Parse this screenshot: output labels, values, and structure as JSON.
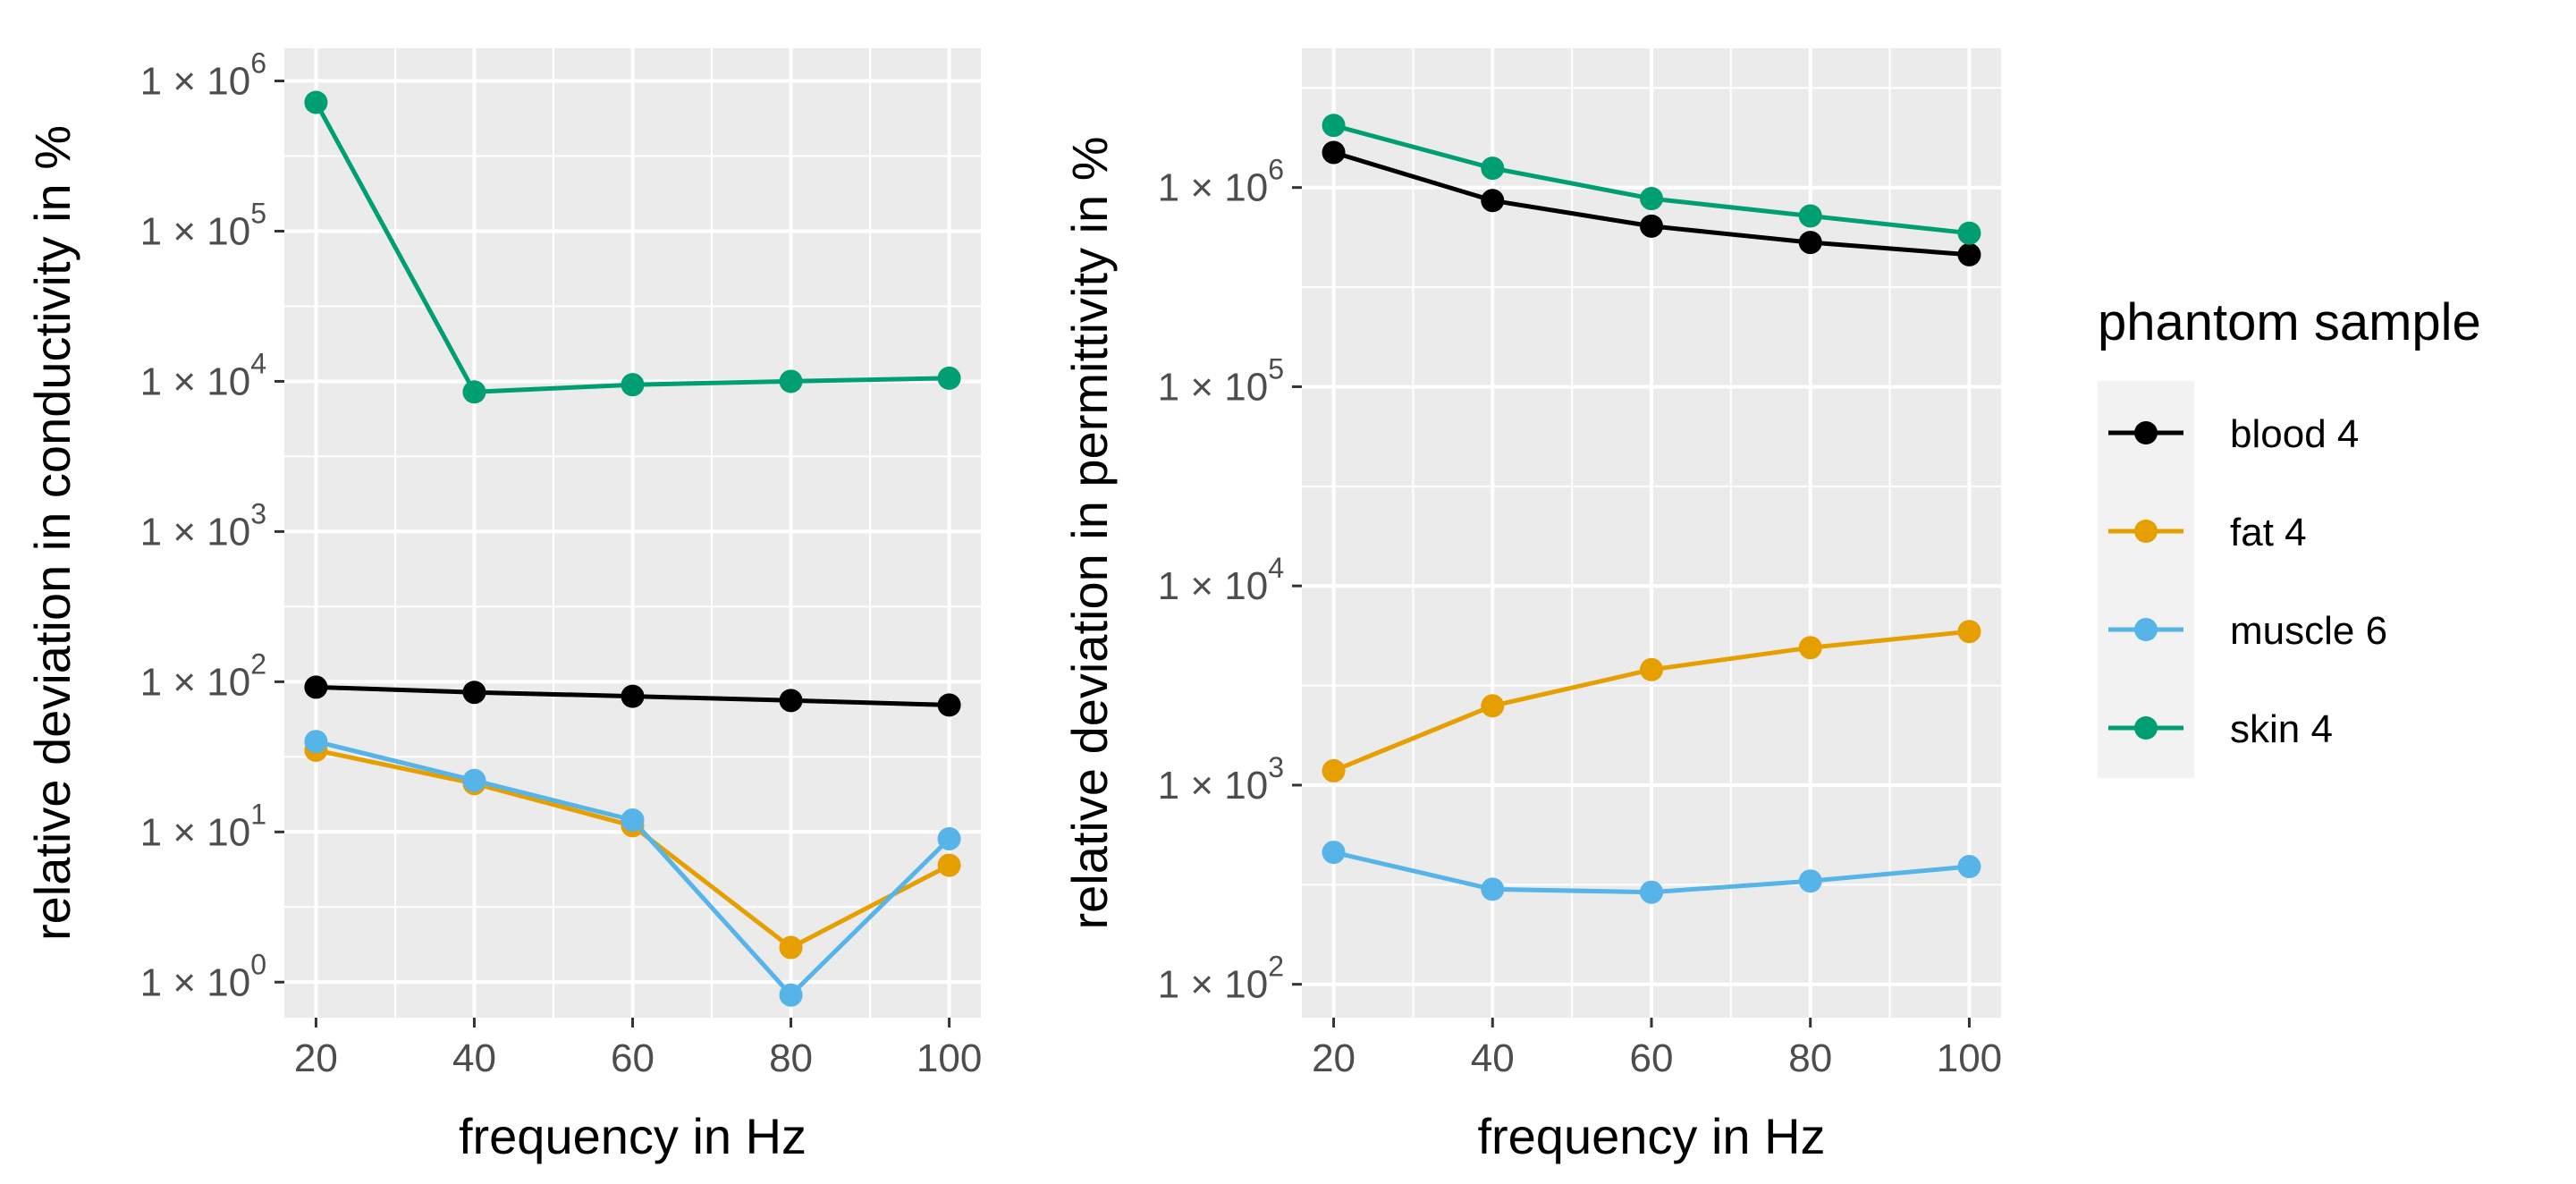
{
  "chart_data": [
    {
      "type": "line",
      "xlabel": "frequency in Hz",
      "ylabel": "relative deviation in conductivity in %",
      "y_scale": "log10",
      "x": [
        20,
        40,
        60,
        80,
        100
      ],
      "x_ticks": [
        "20",
        "40",
        "60",
        "80",
        "100"
      ],
      "y_ticks": [
        {
          "value": 1,
          "mantissa": "1 × 10",
          "exponent": "0"
        },
        {
          "value": 10,
          "mantissa": "1 × 10",
          "exponent": "1"
        },
        {
          "value": 100,
          "mantissa": "1 × 10",
          "exponent": "2"
        },
        {
          "value": 1000,
          "mantissa": "1 × 10",
          "exponent": "3"
        },
        {
          "value": 10000,
          "mantissa": "1 × 10",
          "exponent": "4"
        },
        {
          "value": 100000,
          "mantissa": "1 × 10",
          "exponent": "5"
        },
        {
          "value": 1000000,
          "mantissa": "1 × 10",
          "exponent": "6"
        }
      ],
      "xlim": [
        16,
        104
      ],
      "ylim": [
        0.58,
        1650000
      ],
      "grid": true,
      "series": [
        {
          "name": "blood 4",
          "color": "#000000",
          "values": [
            92,
            85,
            80,
            75,
            70
          ]
        },
        {
          "name": "fat 4",
          "color": "#E69F00",
          "values": [
            35,
            21,
            11,
            1.7,
            6
          ]
        },
        {
          "name": "muscle 6",
          "color": "#56B4E9",
          "values": [
            40,
            22,
            12,
            0.82,
            9
          ]
        },
        {
          "name": "skin 4",
          "color": "#009E73",
          "values": [
            720000,
            8500,
            9500,
            10000,
            10500
          ]
        }
      ]
    },
    {
      "type": "line",
      "xlabel": "frequency in Hz",
      "ylabel": "relative deviation in permittivity in %",
      "y_scale": "log10",
      "x": [
        20,
        40,
        60,
        80,
        100
      ],
      "x_ticks": [
        "20",
        "40",
        "60",
        "80",
        "100"
      ],
      "y_ticks": [
        {
          "value": 100,
          "mantissa": "1 × 10",
          "exponent": "2"
        },
        {
          "value": 1000,
          "mantissa": "1 × 10",
          "exponent": "3"
        },
        {
          "value": 10000,
          "mantissa": "1 × 10",
          "exponent": "4"
        },
        {
          "value": 100000,
          "mantissa": "1 × 10",
          "exponent": "5"
        },
        {
          "value": 1000000,
          "mantissa": "1 × 10",
          "exponent": "6"
        }
      ],
      "xlim": [
        16,
        104
      ],
      "ylim": [
        68,
        5000000
      ],
      "grid": true,
      "series": [
        {
          "name": "blood 4",
          "color": "#000000",
          "values": [
            1500000,
            860000,
            640000,
            530000,
            460000
          ]
        },
        {
          "name": "fat 4",
          "color": "#E69F00",
          "values": [
            1180,
            2500,
            3800,
            4900,
            5900
          ]
        },
        {
          "name": "muscle 6",
          "color": "#56B4E9",
          "values": [
            460,
            300,
            290,
            330,
            390
          ]
        },
        {
          "name": "skin 4",
          "color": "#009E73",
          "values": [
            2050000,
            1250000,
            880000,
            720000,
            590000
          ]
        }
      ]
    }
  ],
  "legend": {
    "title": "phantom sample",
    "position": "right",
    "items": [
      {
        "label": "blood 4",
        "color": "#000000"
      },
      {
        "label": "fat 4",
        "color": "#E69F00"
      },
      {
        "label": "muscle 6",
        "color": "#56B4E9"
      },
      {
        "label": "skin 4",
        "color": "#009E73"
      }
    ]
  }
}
